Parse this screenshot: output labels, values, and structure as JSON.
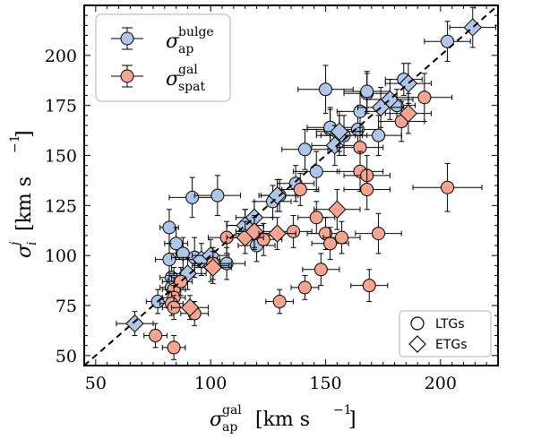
{
  "chart_data": {
    "type": "scatter",
    "xlim": [
      45,
      225
    ],
    "ylim": [
      45,
      225
    ],
    "xticks": [
      50,
      100,
      150,
      200
    ],
    "yticks": [
      50,
      75,
      100,
      125,
      150,
      175,
      200
    ],
    "xlabel": "σ_ap^gal [km s^-1]",
    "ylabel": "σ_i^j [km s^-1]",
    "xlabel_parts": {
      "sym": "σ",
      "sup": "gal",
      "sub": "ap",
      "unit": "[km s",
      "exp": "−1",
      "close": "]"
    },
    "ylabel_parts": {
      "sym": "σ",
      "sup": "j",
      "sub": "i",
      "unit": "[km s",
      "exp": "−1",
      "close": "]"
    },
    "one_to_one_line": true,
    "legend_series": [
      {
        "name": "σ_ap^bulge",
        "sym": "σ",
        "sup": "bulge",
        "sub": "ap",
        "color": "#aec7e8"
      },
      {
        "name": "σ_spat^gal",
        "sym": "σ",
        "sup": "gal",
        "sub": "spat",
        "color": "#f5a58f"
      }
    ],
    "legend_markers": [
      {
        "label": "LTGs",
        "marker": "circle"
      },
      {
        "label": "ETGs",
        "marker": "diamond"
      }
    ],
    "series": [
      {
        "name": "bulge",
        "color": "#aec7e8",
        "points": [
          [
            82,
            114,
            4,
            8,
            9
          ],
          [
            85,
            106,
            5,
            8,
            8
          ],
          [
            83,
            89,
            5,
            8,
            8
          ],
          [
            84,
            87,
            5,
            7,
            7
          ],
          [
            83,
            84,
            5,
            6,
            6
          ],
          [
            77,
            77,
            5,
            6,
            6
          ],
          [
            88,
            101,
            6,
            8,
            8
          ],
          [
            82,
            98,
            6,
            8,
            8
          ],
          [
            92,
            129,
            10,
            10,
            10
          ],
          [
            103,
            130,
            10,
            10,
            10
          ],
          [
            107,
            96,
            8,
            8,
            8
          ],
          [
            100,
            95,
            8,
            8,
            8
          ],
          [
            93,
            99,
            10,
            10,
            10
          ],
          [
            120,
            110,
            8,
            8,
            8
          ],
          [
            120,
            105,
            8,
            8,
            8
          ],
          [
            115,
            115,
            8,
            8,
            8
          ],
          [
            127,
            127,
            8,
            8,
            8
          ],
          [
            130,
            130,
            8,
            8,
            8
          ],
          [
            137,
            136,
            8,
            9,
            9
          ],
          [
            141,
            153,
            10,
            10,
            10
          ],
          [
            146,
            142,
            10,
            10,
            10
          ],
          [
            150,
            183,
            12,
            12,
            12
          ],
          [
            152,
            163,
            10,
            10,
            10
          ],
          [
            152,
            164,
            10,
            10,
            10
          ],
          [
            158,
            160,
            10,
            10,
            10
          ],
          [
            156,
            160,
            10,
            10,
            10
          ],
          [
            164,
            163,
            10,
            10,
            10
          ],
          [
            165,
            172,
            10,
            10,
            10
          ],
          [
            168,
            181,
            10,
            10,
            10
          ],
          [
            168,
            182,
            10,
            10,
            10
          ],
          [
            173,
            160,
            10,
            10,
            10
          ],
          [
            181,
            175,
            8,
            8,
            8
          ],
          [
            184,
            188,
            8,
            8,
            8
          ],
          [
            203,
            207,
            10,
            10,
            10
          ]
        ]
      },
      {
        "name": "bulge-etg",
        "color": "#aec7e8",
        "points": [
          [
            67,
            66,
            8,
            6,
            6
          ],
          [
            90,
            91,
            8,
            8,
            8
          ],
          [
            96,
            98,
            8,
            8,
            8
          ],
          [
            100,
            100,
            8,
            8,
            8
          ],
          [
            115,
            115,
            8,
            8,
            8
          ],
          [
            119,
            119,
            8,
            8,
            8
          ],
          [
            129,
            130,
            8,
            8,
            8
          ],
          [
            154,
            155,
            10,
            10,
            10
          ],
          [
            156,
            162,
            10,
            10,
            10
          ],
          [
            174,
            174,
            10,
            10,
            10
          ],
          [
            178,
            178,
            10,
            10,
            10
          ],
          [
            186,
            186,
            10,
            10,
            10
          ],
          [
            214,
            214,
            10,
            10,
            10
          ]
        ]
      },
      {
        "name": "spat",
        "color": "#f5a58f",
        "points": [
          [
            76,
            60,
            5,
            6,
            6
          ],
          [
            84,
            54,
            5,
            6,
            6
          ],
          [
            84,
            83,
            5,
            6,
            6
          ],
          [
            84,
            79,
            5,
            6,
            6
          ],
          [
            83,
            76,
            5,
            6,
            6
          ],
          [
            84,
            74,
            5,
            6,
            6
          ],
          [
            87,
            87,
            5,
            7,
            7
          ],
          [
            93,
            71,
            6,
            6,
            6
          ],
          [
            101,
            96,
            8,
            8,
            8
          ],
          [
            107,
            109,
            8,
            8,
            8
          ],
          [
            123,
            108,
            8,
            8,
            8
          ],
          [
            119,
            111,
            8,
            8,
            8
          ],
          [
            130,
            77,
            6,
            6,
            6
          ],
          [
            136,
            112,
            8,
            8,
            8
          ],
          [
            139,
            133,
            8,
            8,
            8
          ],
          [
            141,
            84,
            6,
            6,
            6
          ],
          [
            146,
            119,
            8,
            8,
            8
          ],
          [
            148,
            93,
            8,
            8,
            8
          ],
          [
            150,
            111,
            8,
            8,
            8
          ],
          [
            152,
            106,
            8,
            8,
            8
          ],
          [
            157,
            109,
            8,
            8,
            8
          ],
          [
            165,
            154,
            10,
            10,
            10
          ],
          [
            165,
            142,
            10,
            10,
            10
          ],
          [
            168,
            140,
            10,
            10,
            10
          ],
          [
            168,
            133,
            10,
            10,
            10
          ],
          [
            169,
            85,
            8,
            8,
            8
          ],
          [
            173,
            111,
            10,
            10,
            10
          ],
          [
            183,
            167,
            10,
            10,
            10
          ],
          [
            193,
            179,
            12,
            12,
            12
          ],
          [
            203,
            134,
            15,
            12,
            12
          ]
        ]
      },
      {
        "name": "spat-etg",
        "color": "#f5a58f",
        "points": [
          [
            91,
            74,
            8,
            6,
            6
          ],
          [
            101,
            94,
            8,
            8,
            8
          ],
          [
            115,
            109,
            8,
            8,
            8
          ],
          [
            119,
            112,
            8,
            8,
            8
          ],
          [
            129,
            111,
            8,
            8,
            8
          ],
          [
            155,
            123,
            10,
            10,
            10
          ],
          [
            186,
            171,
            10,
            10,
            10
          ]
        ]
      }
    ]
  }
}
